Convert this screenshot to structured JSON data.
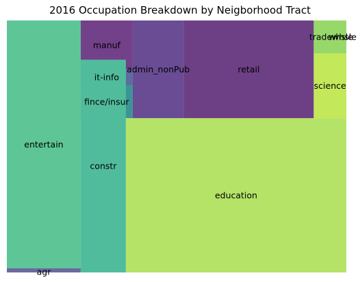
{
  "chart_data": {
    "type": "treemap",
    "title": "2016 Occupation Breakdown by Neigborhood Tract",
    "items": [
      {
        "label": "entertain",
        "value": 1800,
        "color": "#5ec596"
      },
      {
        "label": "agr",
        "value": 30,
        "color": "#6a6aa0"
      },
      {
        "label": "manuf",
        "value": 250,
        "color": "#73408a"
      },
      {
        "label": "it-info",
        "value": 80,
        "color": "#5d6b9e"
      },
      {
        "label": "fince/insur",
        "value": 170,
        "color": "#3d9496"
      },
      {
        "label": "constr",
        "value": 945,
        "color": "#51bc9c"
      },
      {
        "label": "admin_nonPub",
        "value": 490,
        "color": "#6a4c94"
      },
      {
        "label": "retail",
        "value": 1250,
        "color": "#6d4085"
      },
      {
        "label": "tradewhsle",
        "value": 105,
        "color": "#97d86b"
      },
      {
        "label": "whsle",
        "value": 40,
        "color": "#c2e558"
      },
      {
        "label": "science",
        "value": 270,
        "color": "#c3e85a"
      },
      {
        "label": "education",
        "value": 2980,
        "color": "#b5e367"
      }
    ]
  }
}
